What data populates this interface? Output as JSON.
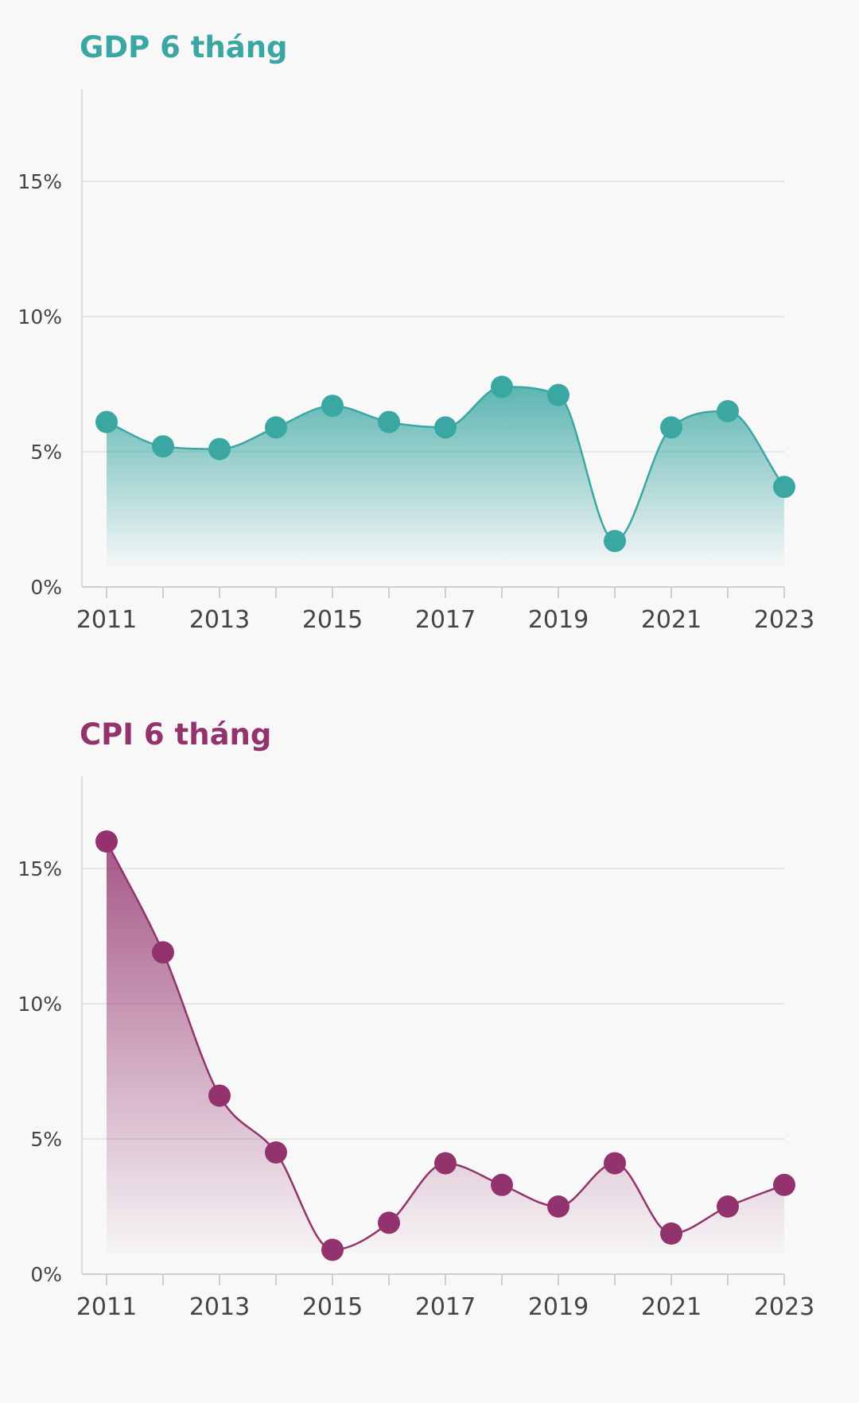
{
  "chart_data": [
    {
      "type": "area",
      "title": "GDP 6 tháng",
      "color": "#3aa7a3",
      "x": [
        2011,
        2012,
        2013,
        2014,
        2015,
        2016,
        2017,
        2018,
        2019,
        2020,
        2021,
        2022,
        2023
      ],
      "values": [
        6.1,
        5.2,
        5.1,
        5.9,
        6.7,
        6.1,
        5.9,
        7.4,
        7.1,
        1.7,
        5.9,
        6.5,
        3.7
      ],
      "x_tick_labels": [
        "2011",
        "2013",
        "2015",
        "2017",
        "2019",
        "2021",
        "2023"
      ],
      "y_ticks": [
        0,
        5,
        10,
        15
      ],
      "y_tick_labels": [
        "0%",
        "5%",
        "10%",
        "15%"
      ],
      "ylim": [
        0,
        18
      ],
      "xlabel": "",
      "ylabel": ""
    },
    {
      "type": "area",
      "title": "CPI 6 tháng",
      "color": "#93336d",
      "x": [
        2011,
        2012,
        2013,
        2014,
        2015,
        2016,
        2017,
        2018,
        2019,
        2020,
        2021,
        2022,
        2023
      ],
      "values": [
        16.0,
        11.9,
        6.6,
        4.5,
        0.9,
        1.9,
        4.1,
        3.3,
        2.5,
        4.1,
        1.5,
        2.5,
        3.3
      ],
      "x_tick_labels": [
        "2011",
        "2013",
        "2015",
        "2017",
        "2019",
        "2021",
        "2023"
      ],
      "y_ticks": [
        0,
        5,
        10,
        15
      ],
      "y_tick_labels": [
        "0%",
        "5%",
        "10%",
        "15%"
      ],
      "ylim": [
        0,
        18
      ],
      "xlabel": "",
      "ylabel": ""
    }
  ]
}
